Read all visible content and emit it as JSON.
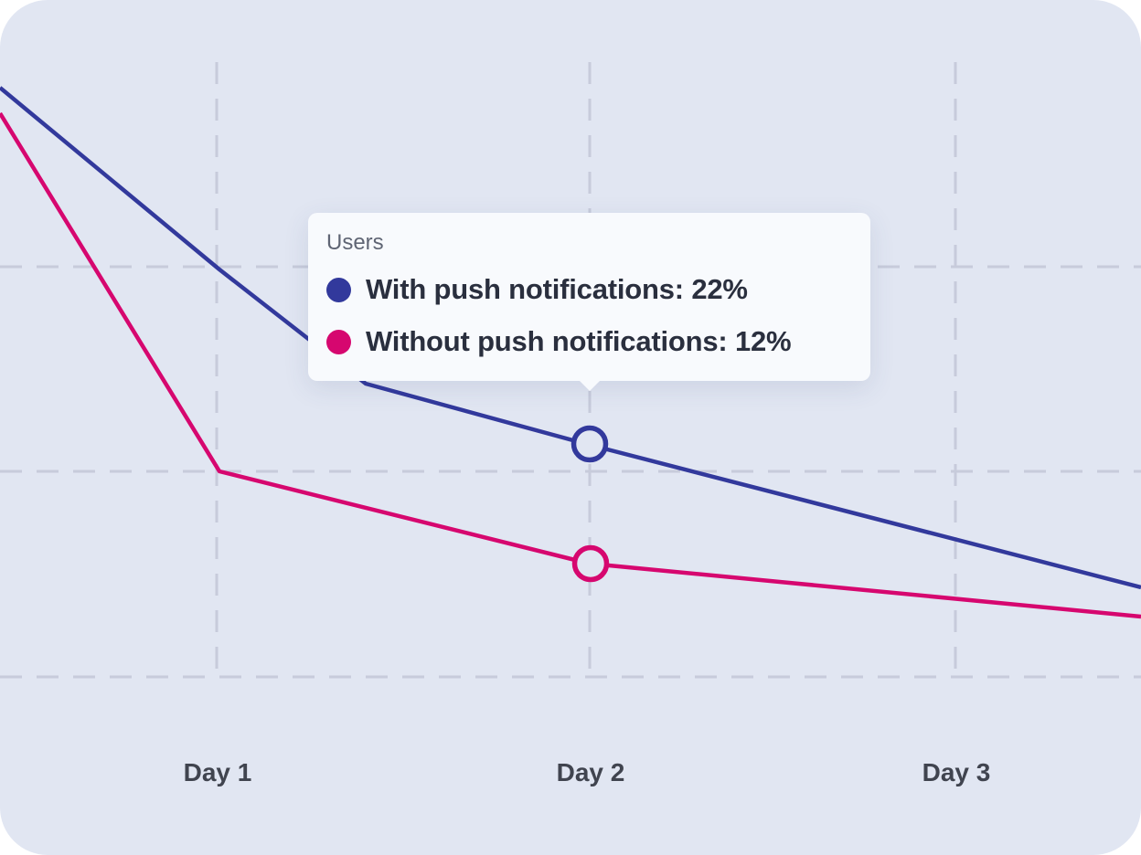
{
  "chart_data": {
    "type": "line",
    "x": [
      "Day 1",
      "Day 2",
      "Day 3"
    ],
    "series": [
      {
        "name": "With push notifications",
        "color": "#32399c",
        "values": [
          null,
          22,
          null
        ]
      },
      {
        "name": "Without push notifications",
        "color": "#d6076f",
        "values": [
          null,
          12,
          null
        ]
      }
    ],
    "highlight": "Day 2",
    "grid": true,
    "value_unit": "%"
  },
  "tooltip": {
    "title": "Users",
    "rows": [
      {
        "label": "With push notifications: 22%",
        "color": "#32399c"
      },
      {
        "label": "Without push notifications: 12%",
        "color": "#d6076f"
      }
    ]
  },
  "x_axis": {
    "labels": [
      "Day 1",
      "Day 2",
      "Day 3"
    ]
  },
  "colors": {
    "background": "#e1e6f2",
    "grid": "#c7cbdb",
    "series_with_push": "#32399c",
    "series_without_push": "#d6076f"
  }
}
